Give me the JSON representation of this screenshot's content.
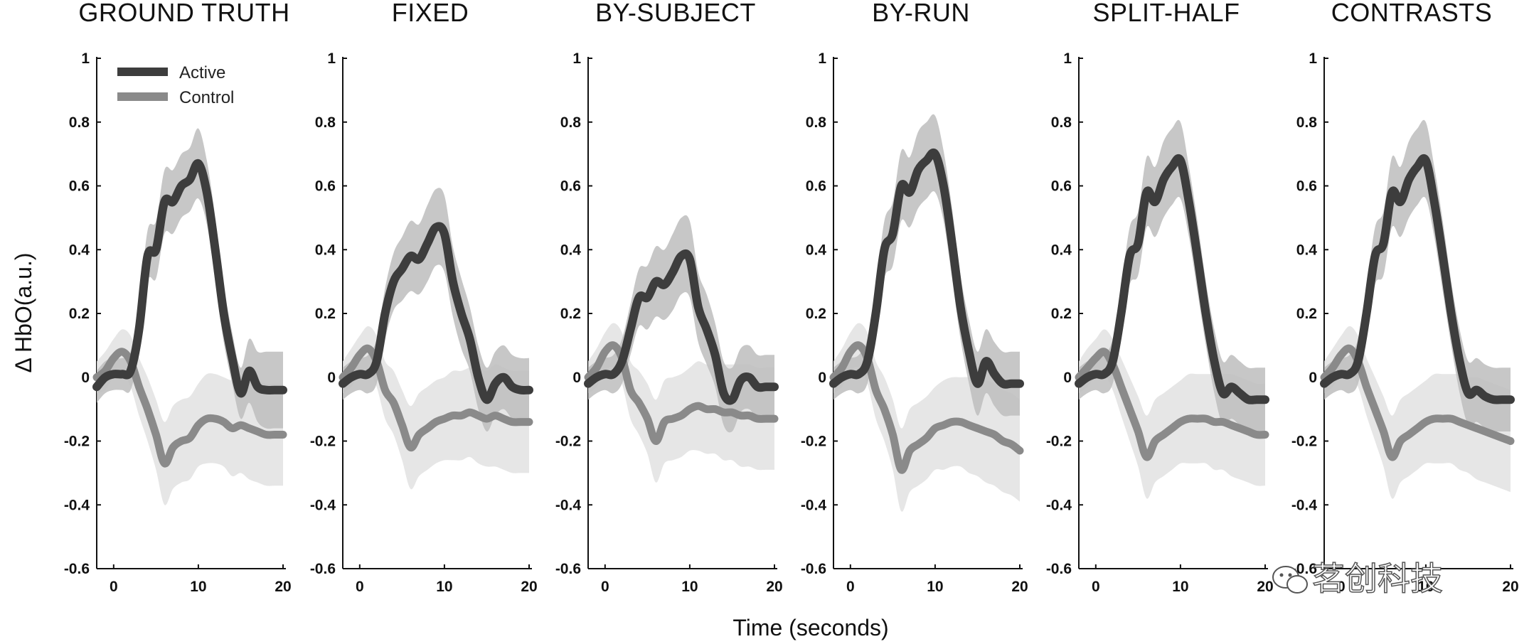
{
  "chart_data": {
    "type": "line",
    "ylabel": "Δ HbO(a.u.)",
    "xlabel": "Time (seconds)",
    "xlim": [
      -2,
      20
    ],
    "ylim": [
      -0.6,
      1
    ],
    "xticks": [
      0,
      10,
      20
    ],
    "yticks": [
      1,
      0.8,
      0.6,
      0.4,
      0.2,
      0,
      -0.2,
      -0.4,
      -0.6
    ],
    "ytick_labels": [
      "1",
      "0.8",
      "0.6",
      "0.4",
      "0.2",
      "0",
      "-0.2",
      "-0.4",
      "-0.6"
    ],
    "legend": [
      {
        "name": "Active",
        "color": "#3d3d3d"
      },
      {
        "name": "Control",
        "color": "#8a8a8a"
      }
    ],
    "colors": {
      "active": "#3d3d3d",
      "control": "#8a8a8a",
      "active_band": "#bdbdbd",
      "control_band": "#e2e2e2"
    },
    "x": [
      -2,
      -1,
      0,
      1,
      2,
      3,
      4,
      5,
      6,
      7,
      8,
      9,
      10,
      11,
      12,
      13,
      14,
      15,
      16,
      17,
      18,
      19,
      20
    ],
    "panels": [
      {
        "title": "GROUND TRUTH",
        "active": [
          -0.03,
          0.0,
          0.01,
          0.01,
          0.02,
          0.15,
          0.38,
          0.4,
          0.55,
          0.55,
          0.6,
          0.62,
          0.67,
          0.58,
          0.4,
          0.2,
          0.06,
          -0.05,
          0.02,
          -0.03,
          -0.04,
          -0.04,
          -0.04
        ],
        "active_err": [
          0.05,
          0.05,
          0.05,
          0.05,
          0.06,
          0.07,
          0.08,
          0.09,
          0.1,
          0.1,
          0.1,
          0.1,
          0.11,
          0.1,
          0.1,
          0.09,
          0.08,
          0.08,
          0.1,
          0.11,
          0.12,
          0.12,
          0.12
        ],
        "control": [
          0.0,
          0.02,
          0.06,
          0.08,
          0.05,
          -0.03,
          -0.1,
          -0.18,
          -0.27,
          -0.22,
          -0.2,
          -0.19,
          -0.15,
          -0.13,
          -0.13,
          -0.14,
          -0.16,
          -0.15,
          -0.16,
          -0.17,
          -0.18,
          -0.18,
          -0.18
        ],
        "control_err": [
          0.05,
          0.06,
          0.06,
          0.07,
          0.08,
          0.09,
          0.1,
          0.11,
          0.13,
          0.13,
          0.13,
          0.13,
          0.13,
          0.14,
          0.14,
          0.14,
          0.15,
          0.15,
          0.16,
          0.16,
          0.16,
          0.16,
          0.16
        ]
      },
      {
        "title": "FIXED",
        "active": [
          -0.02,
          0.0,
          0.01,
          0.01,
          0.05,
          0.2,
          0.3,
          0.34,
          0.38,
          0.37,
          0.42,
          0.47,
          0.45,
          0.3,
          0.2,
          0.12,
          0.0,
          -0.07,
          -0.02,
          0.0,
          -0.03,
          -0.04,
          -0.04
        ],
        "active_err": [
          0.05,
          0.05,
          0.05,
          0.06,
          0.07,
          0.08,
          0.09,
          0.1,
          0.11,
          0.11,
          0.12,
          0.12,
          0.12,
          0.11,
          0.11,
          0.1,
          0.1,
          0.1,
          0.1,
          0.1,
          0.1,
          0.1,
          0.1
        ],
        "control": [
          0.0,
          0.03,
          0.07,
          0.09,
          0.05,
          -0.04,
          -0.08,
          -0.15,
          -0.22,
          -0.18,
          -0.16,
          -0.14,
          -0.13,
          -0.12,
          -0.12,
          -0.11,
          -0.12,
          -0.13,
          -0.12,
          -0.13,
          -0.14,
          -0.14,
          -0.14
        ],
        "control_err": [
          0.05,
          0.06,
          0.06,
          0.07,
          0.08,
          0.09,
          0.1,
          0.11,
          0.13,
          0.13,
          0.13,
          0.13,
          0.13,
          0.14,
          0.14,
          0.14,
          0.15,
          0.15,
          0.16,
          0.16,
          0.16,
          0.16,
          0.16
        ]
      },
      {
        "title": "BY-SUBJECT",
        "active": [
          -0.02,
          0.0,
          0.01,
          0.01,
          0.05,
          0.15,
          0.25,
          0.25,
          0.3,
          0.29,
          0.33,
          0.38,
          0.37,
          0.22,
          0.15,
          0.07,
          -0.05,
          -0.07,
          -0.01,
          0.0,
          -0.03,
          -0.03,
          -0.03
        ],
        "active_err": [
          0.05,
          0.05,
          0.05,
          0.06,
          0.07,
          0.08,
          0.09,
          0.1,
          0.11,
          0.11,
          0.12,
          0.12,
          0.12,
          0.11,
          0.11,
          0.1,
          0.1,
          0.1,
          0.1,
          0.1,
          0.1,
          0.1,
          0.1
        ],
        "control": [
          0.0,
          0.03,
          0.08,
          0.1,
          0.06,
          -0.04,
          -0.08,
          -0.13,
          -0.2,
          -0.14,
          -0.13,
          -0.12,
          -0.1,
          -0.09,
          -0.1,
          -0.1,
          -0.11,
          -0.11,
          -0.12,
          -0.12,
          -0.13,
          -0.13,
          -0.13
        ],
        "control_err": [
          0.05,
          0.06,
          0.06,
          0.07,
          0.08,
          0.09,
          0.1,
          0.11,
          0.13,
          0.13,
          0.13,
          0.13,
          0.13,
          0.14,
          0.14,
          0.14,
          0.15,
          0.15,
          0.16,
          0.16,
          0.16,
          0.16,
          0.16
        ]
      },
      {
        "title": "BY-RUN",
        "active": [
          -0.02,
          0.0,
          0.01,
          0.01,
          0.05,
          0.2,
          0.4,
          0.45,
          0.6,
          0.58,
          0.65,
          0.68,
          0.7,
          0.6,
          0.42,
          0.22,
          0.08,
          -0.02,
          0.05,
          0.01,
          -0.02,
          -0.02,
          -0.02
        ],
        "active_err": [
          0.05,
          0.05,
          0.05,
          0.06,
          0.07,
          0.08,
          0.09,
          0.1,
          0.11,
          0.11,
          0.12,
          0.12,
          0.12,
          0.11,
          0.11,
          0.1,
          0.1,
          0.1,
          0.1,
          0.1,
          0.1,
          0.1,
          0.1
        ],
        "control": [
          0.0,
          0.03,
          0.08,
          0.1,
          0.06,
          -0.04,
          -0.1,
          -0.18,
          -0.29,
          -0.23,
          -0.21,
          -0.19,
          -0.16,
          -0.15,
          -0.14,
          -0.14,
          -0.15,
          -0.16,
          -0.17,
          -0.18,
          -0.2,
          -0.21,
          -0.23
        ],
        "control_err": [
          0.05,
          0.06,
          0.06,
          0.07,
          0.08,
          0.09,
          0.1,
          0.11,
          0.13,
          0.13,
          0.13,
          0.13,
          0.13,
          0.14,
          0.14,
          0.14,
          0.15,
          0.15,
          0.16,
          0.16,
          0.16,
          0.16,
          0.16
        ]
      },
      {
        "title": "SPLIT-HALF",
        "active": [
          -0.02,
          0.0,
          0.01,
          0.01,
          0.05,
          0.2,
          0.38,
          0.42,
          0.58,
          0.55,
          0.62,
          0.66,
          0.68,
          0.55,
          0.38,
          0.2,
          0.05,
          -0.05,
          -0.03,
          -0.05,
          -0.07,
          -0.07,
          -0.07
        ],
        "active_err": [
          0.05,
          0.05,
          0.05,
          0.06,
          0.07,
          0.08,
          0.09,
          0.1,
          0.11,
          0.11,
          0.12,
          0.12,
          0.12,
          0.11,
          0.11,
          0.1,
          0.1,
          0.1,
          0.1,
          0.1,
          0.1,
          0.1,
          0.1
        ],
        "control": [
          0.0,
          0.03,
          0.06,
          0.08,
          0.04,
          -0.03,
          -0.1,
          -0.17,
          -0.25,
          -0.2,
          -0.18,
          -0.16,
          -0.14,
          -0.13,
          -0.13,
          -0.13,
          -0.14,
          -0.14,
          -0.15,
          -0.16,
          -0.17,
          -0.18,
          -0.18
        ],
        "control_err": [
          0.05,
          0.06,
          0.06,
          0.07,
          0.08,
          0.09,
          0.1,
          0.11,
          0.13,
          0.13,
          0.13,
          0.13,
          0.13,
          0.14,
          0.14,
          0.14,
          0.15,
          0.15,
          0.16,
          0.16,
          0.16,
          0.16,
          0.16
        ]
      },
      {
        "title": "CONTRASTS",
        "active": [
          -0.02,
          0.0,
          0.01,
          0.01,
          0.05,
          0.2,
          0.38,
          0.42,
          0.58,
          0.55,
          0.62,
          0.66,
          0.68,
          0.55,
          0.38,
          0.2,
          0.05,
          -0.05,
          -0.04,
          -0.06,
          -0.07,
          -0.07,
          -0.07
        ],
        "active_err": [
          0.05,
          0.05,
          0.05,
          0.06,
          0.07,
          0.08,
          0.09,
          0.1,
          0.11,
          0.11,
          0.12,
          0.12,
          0.12,
          0.11,
          0.11,
          0.1,
          0.1,
          0.1,
          0.1,
          0.1,
          0.1,
          0.1,
          0.1
        ],
        "control": [
          0.0,
          0.03,
          0.07,
          0.09,
          0.05,
          -0.03,
          -0.1,
          -0.17,
          -0.25,
          -0.2,
          -0.18,
          -0.16,
          -0.14,
          -0.13,
          -0.13,
          -0.13,
          -0.14,
          -0.15,
          -0.16,
          -0.17,
          -0.18,
          -0.19,
          -0.2
        ],
        "control_err": [
          0.05,
          0.06,
          0.06,
          0.07,
          0.08,
          0.09,
          0.1,
          0.11,
          0.13,
          0.13,
          0.13,
          0.13,
          0.13,
          0.14,
          0.14,
          0.14,
          0.15,
          0.15,
          0.16,
          0.16,
          0.16,
          0.16,
          0.16
        ]
      }
    ]
  },
  "watermark": {
    "text": "茗创科技",
    "icon": "wechat-icon"
  }
}
